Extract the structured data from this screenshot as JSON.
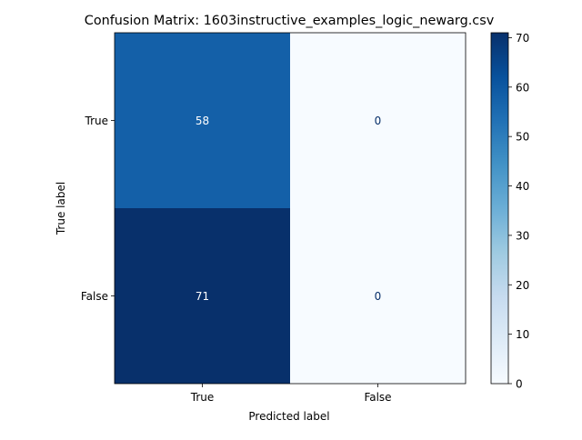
{
  "chart_data": {
    "type": "heatmap",
    "title": "Confusion Matrix: 1603instructive_examples_logic_newarg.csv",
    "xlabel": "Predicted label",
    "ylabel": "True label",
    "row_labels": [
      "True",
      "False"
    ],
    "col_labels": [
      "True",
      "False"
    ],
    "values": [
      [
        58,
        0
      ],
      [
        71,
        0
      ]
    ],
    "colormap": "Blues",
    "vmin": 0,
    "vmax": 71,
    "colorbar_ticks": [
      0,
      10,
      20,
      30,
      40,
      50,
      60,
      70
    ],
    "grid": false
  }
}
